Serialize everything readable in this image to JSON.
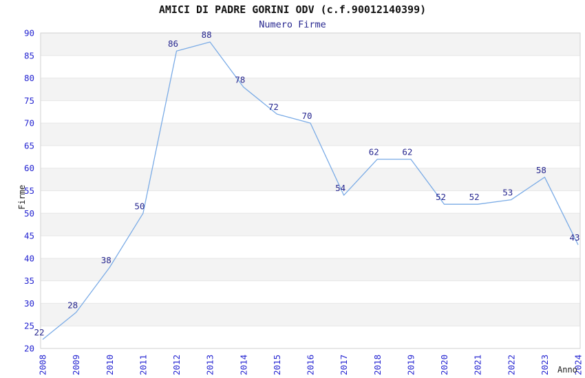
{
  "title": "AMICI DI PADRE GORINI ODV (c.f.90012140399)",
  "subtitle": "Numero Firme",
  "chart_data": {
    "type": "line",
    "title": "AMICI DI PADRE GORINI ODV (c.f.90012140399)",
    "subtitle": "Numero Firme",
    "xlabel": "Anno",
    "ylabel": "Firme",
    "x": [
      2008,
      2009,
      2010,
      2011,
      2012,
      2013,
      2014,
      2015,
      2016,
      2017,
      2018,
      2019,
      2020,
      2021,
      2022,
      2023,
      2024
    ],
    "values": [
      22,
      28,
      38,
      50,
      86,
      88,
      78,
      72,
      70,
      54,
      62,
      62,
      52,
      52,
      53,
      58,
      43
    ],
    "ylim": [
      20,
      90
    ],
    "ytick_step": 5,
    "grid": "horizontal-bands-alternating",
    "legend": "none",
    "data_labels_shown": true,
    "colors": {
      "line": "#7aabe6",
      "tick_label": "#2424d1",
      "data_label": "#26268f",
      "subtitle": "#26268f",
      "band_fill": "#f3f3f3",
      "gridline": "#e6e6e6",
      "plot_border": "#d2d2d2",
      "title": "#111111",
      "axis_title": "#1a1a1a",
      "background": "#ffffff"
    }
  }
}
